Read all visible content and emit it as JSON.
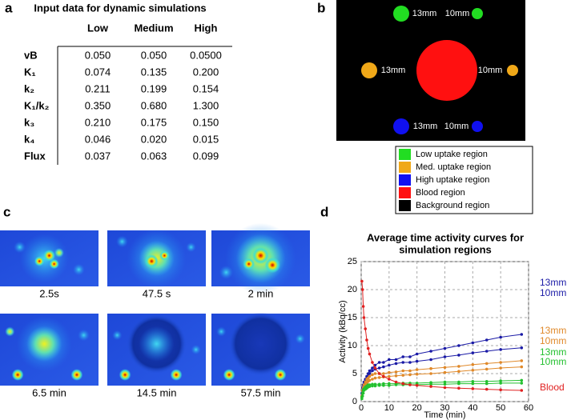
{
  "panel_labels": [
    "a",
    "b",
    "c",
    "d"
  ],
  "table": {
    "title": "Input data for dynamic simulations",
    "columns": [
      "Low",
      "Medium",
      "High"
    ],
    "rows": [
      [
        "vB",
        "0.050",
        "0.050",
        "0.0500"
      ],
      [
        "K₁",
        "0.074",
        "0.135",
        "0.200"
      ],
      [
        "k₂",
        "0.211",
        "0.199",
        "0.154"
      ],
      [
        "K₁/k₂",
        "0.350",
        "0.680",
        "1.300"
      ],
      [
        "k₃",
        "0.210",
        "0.175",
        "0.150"
      ],
      [
        "k₄",
        "0.046",
        "0.020",
        "0.015"
      ],
      [
        "Flux",
        "0.037",
        "0.063",
        "0.099"
      ]
    ]
  },
  "phantom": {
    "labels": [
      "13mm",
      "10mm",
      "13mm",
      "10mm",
      "13mm",
      "10mm"
    ],
    "legend": [
      {
        "label": "Low uptake region",
        "color": "#22dd22"
      },
      {
        "label": "Med. uptake region",
        "color": "#f0a818"
      },
      {
        "label": "High uptake region",
        "color": "#1010f0"
      },
      {
        "label": "Blood region",
        "color": "#ff1010"
      },
      {
        "label": "Background region",
        "color": "#000000"
      }
    ]
  },
  "images": {
    "captions": [
      "2.5s",
      "47.5 s",
      "2 min",
      "6.5 min",
      "14.5 min",
      "57.5 min"
    ]
  },
  "chart_data": {
    "type": "line",
    "title": [
      "Average time activity curves for",
      "simulation regions"
    ],
    "x_label": "Time (min)",
    "y_label": "Activity (kBq/cc)",
    "xlim": [
      0,
      60
    ],
    "xticks": [
      0,
      10,
      20,
      30,
      40,
      50,
      60
    ],
    "ylim": [
      0,
      25
    ],
    "yticks": [
      0,
      5,
      10,
      15,
      20,
      25
    ],
    "grid": true,
    "x": [
      0.25,
      0.5,
      0.75,
      1,
      1.5,
      2,
      2.5,
      3,
      4,
      5,
      6.5,
      8,
      10,
      12.5,
      15,
      17.5,
      20,
      25,
      30,
      35,
      40,
      45,
      50,
      57.5
    ],
    "series": [
      {
        "name": "13mm",
        "color": "#1a1aa6",
        "values": [
          1.5,
          2.5,
          3,
          3.5,
          4,
          4.5,
          5,
          5.5,
          6,
          6.5,
          7,
          7,
          7.5,
          7.5,
          8,
          8,
          8.5,
          9,
          9.5,
          10,
          10.5,
          11,
          11.5,
          12
        ]
      },
      {
        "name": "10mm",
        "color": "#1a1aa6",
        "values": [
          1,
          2,
          2.5,
          3,
          3.5,
          4,
          4.5,
          5,
          5.5,
          5.8,
          6,
          6.2,
          6.5,
          6.8,
          7,
          7,
          7.2,
          7.5,
          8,
          8.3,
          8.7,
          9,
          9.3,
          9.6
        ]
      },
      {
        "name": "13mm",
        "color": "#e0892a",
        "values": [
          1,
          2,
          2.5,
          3,
          3.5,
          4,
          4.2,
          4.5,
          4.8,
          5,
          5,
          5,
          5.2,
          5.3,
          5.5,
          5.5,
          5.7,
          5.9,
          6.1,
          6.3,
          6.6,
          6.8,
          7,
          7.3
        ]
      },
      {
        "name": "10mm",
        "color": "#e0892a",
        "values": [
          0.8,
          1.5,
          2,
          2.5,
          3,
          3.3,
          3.6,
          3.8,
          4,
          4.2,
          4.3,
          4.4,
          4.5,
          4.6,
          4.7,
          4.8,
          4.9,
          5,
          5.2,
          5.4,
          5.6,
          5.8,
          6,
          6.2
        ]
      },
      {
        "name": "13mm",
        "color": "#22c02e",
        "values": [
          0.8,
          1.5,
          2,
          2.3,
          2.6,
          2.8,
          3,
          3,
          3.1,
          3.1,
          3.1,
          3.2,
          3.2,
          3.2,
          3.3,
          3.3,
          3.3,
          3.4,
          3.5,
          3.5,
          3.6,
          3.6,
          3.7,
          3.8
        ]
      },
      {
        "name": "10mm",
        "color": "#22c02e",
        "values": [
          0.5,
          1,
          1.5,
          2,
          2.2,
          2.4,
          2.6,
          2.7,
          2.8,
          2.8,
          2.9,
          2.9,
          2.9,
          3,
          3,
          3,
          3,
          3.1,
          3.1,
          3.2,
          3.2,
          3.2,
          3.3,
          3.3
        ]
      },
      {
        "name": "Blood",
        "color": "#e02020",
        "values": [
          21.5,
          20,
          17,
          15,
          13,
          11,
          9.5,
          8.5,
          7,
          6,
          5,
          4.5,
          4,
          3.5,
          3.2,
          3,
          2.9,
          2.7,
          2.5,
          2.4,
          2.3,
          2.2,
          2.1,
          2
        ]
      }
    ]
  }
}
